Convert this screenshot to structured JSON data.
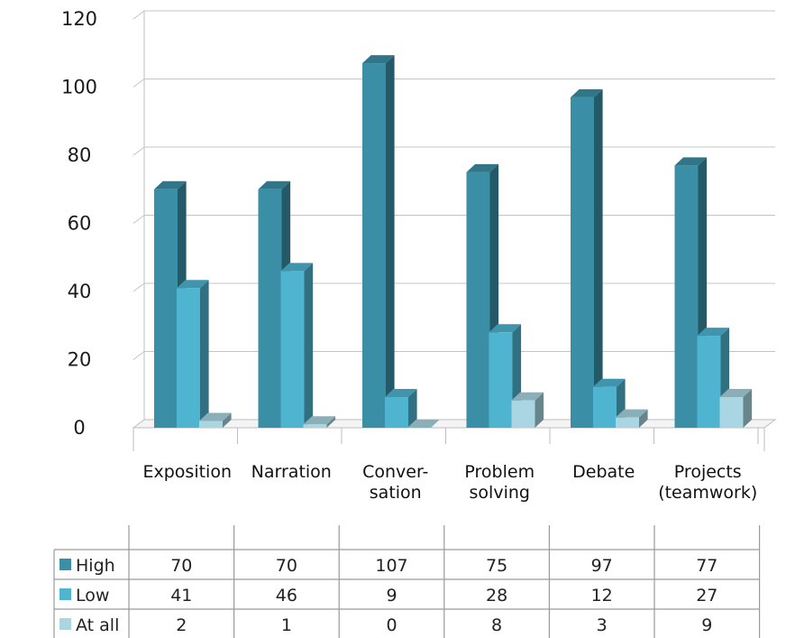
{
  "chart_data": {
    "type": "bar",
    "title": "",
    "xlabel": "",
    "ylabel": "",
    "ylim": [
      0,
      120
    ],
    "yticks": [
      0,
      20,
      40,
      60,
      80,
      100,
      120
    ],
    "grid": true,
    "legend": "data-table",
    "categories": [
      [
        "Exposition"
      ],
      [
        "Narration"
      ],
      [
        "Conver-",
        "sation"
      ],
      [
        "Problem",
        "solving"
      ],
      [
        "Debate"
      ],
      [
        "Projects",
        "(teamwork)"
      ]
    ],
    "series": [
      {
        "name": "High",
        "color": "#3a8fa6",
        "values": [
          70,
          70,
          107,
          75,
          97,
          77
        ]
      },
      {
        "name": "Low",
        "color": "#4eb4d0",
        "values": [
          41,
          46,
          9,
          28,
          12,
          27
        ]
      },
      {
        "name": "At all",
        "color": "#a9d6e2",
        "values": [
          2,
          1,
          0,
          8,
          3,
          9
        ]
      }
    ]
  }
}
